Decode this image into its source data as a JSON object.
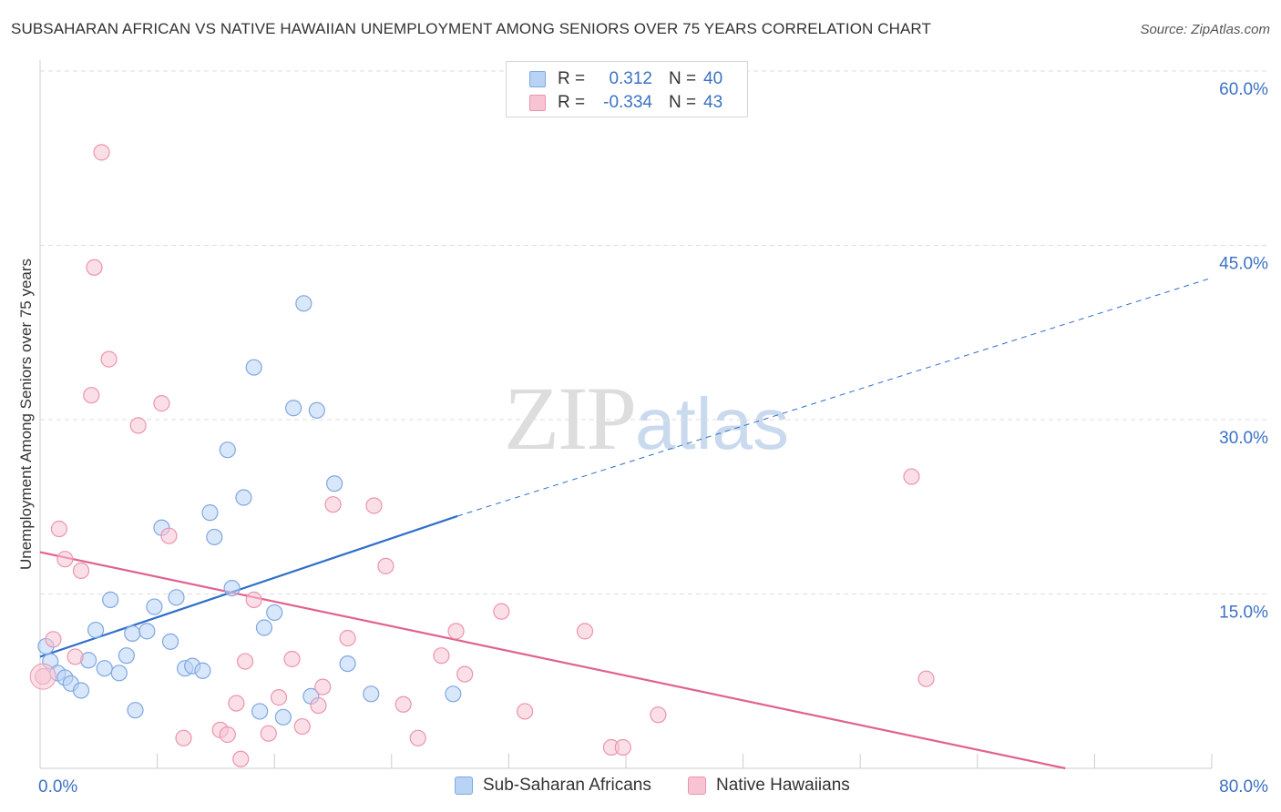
{
  "header": {
    "title": "SUBSAHARAN AFRICAN VS NATIVE HAWAIIAN UNEMPLOYMENT AMONG SENIORS OVER 75 YEARS CORRELATION CHART",
    "source": "Source: ZipAtlas.com"
  },
  "watermark": {
    "zip": "ZIP",
    "atlas": "atlas"
  },
  "legend_top": {
    "rows": [
      {
        "r_label": "R =",
        "r_value": "0.312",
        "n_label": "N =",
        "n_value": "40"
      },
      {
        "r_label": "R =",
        "r_value": "-0.334",
        "n_label": "N =",
        "n_value": "43"
      }
    ]
  },
  "legend_bottom": {
    "items": [
      {
        "label": "Sub-Saharan Africans"
      },
      {
        "label": "Native Hawaiians"
      }
    ]
  },
  "colors": {
    "blue_fill": "#b9d3f5",
    "blue_stroke": "#7fa7e0",
    "blue_line": "#2f6fcb",
    "pink_fill": "#f8c4d3",
    "pink_stroke": "#eb94ae",
    "pink_line": "#e0628f",
    "axis_text": "#3b72c4",
    "grid": "#dedede"
  },
  "chart_data": {
    "type": "scatter",
    "title": "SUBSAHARAN AFRICAN VS NATIVE HAWAIIAN UNEMPLOYMENT AMONG SENIORS OVER 75 YEARS CORRELATION CHART",
    "xlabel": "",
    "ylabel": "Unemployment Among Seniors over 75 years",
    "xlim": [
      0,
      80
    ],
    "ylim": [
      0,
      60
    ],
    "x_tick_labels": [
      "0.0%",
      "80.0%"
    ],
    "y_ticks": [
      15,
      30,
      45,
      60
    ],
    "y_tick_labels": [
      "15.0%",
      "30.0%",
      "45.0%",
      "60.0%"
    ],
    "legend_position": "top-center",
    "series": [
      {
        "name": "Sub-Saharan Africans",
        "color": "blue",
        "points": [
          [
            0.4,
            10.5
          ],
          [
            0.7,
            9.2
          ],
          [
            1.2,
            8.2
          ],
          [
            1.7,
            7.8
          ],
          [
            2.1,
            7.3
          ],
          [
            2.8,
            6.7
          ],
          [
            3.3,
            9.3
          ],
          [
            3.8,
            11.9
          ],
          [
            4.4,
            8.6
          ],
          [
            4.8,
            14.5
          ],
          [
            5.4,
            8.2
          ],
          [
            5.9,
            9.7
          ],
          [
            6.3,
            11.6
          ],
          [
            6.5,
            5.0
          ],
          [
            7.3,
            11.8
          ],
          [
            7.8,
            13.9
          ],
          [
            8.3,
            20.7
          ],
          [
            8.9,
            10.9
          ],
          [
            9.3,
            14.7
          ],
          [
            9.9,
            8.6
          ],
          [
            10.4,
            8.8
          ],
          [
            11.1,
            8.4
          ],
          [
            11.6,
            22.0
          ],
          [
            11.9,
            19.9
          ],
          [
            12.8,
            27.4
          ],
          [
            13.9,
            23.3
          ],
          [
            13.1,
            15.5
          ],
          [
            14.6,
            34.5
          ],
          [
            15.0,
            4.9
          ],
          [
            15.3,
            12.1
          ],
          [
            16.0,
            13.4
          ],
          [
            16.6,
            4.4
          ],
          [
            17.3,
            31.0
          ],
          [
            18.0,
            40.0
          ],
          [
            18.5,
            6.2
          ],
          [
            18.9,
            30.8
          ],
          [
            20.1,
            24.5
          ],
          [
            21.0,
            9.0
          ],
          [
            22.6,
            6.4
          ],
          [
            28.2,
            6.4
          ]
        ]
      },
      {
        "name": "Native Hawaiians",
        "color": "pink",
        "points": [
          [
            0.2,
            7.9
          ],
          [
            0.9,
            11.1
          ],
          [
            1.3,
            20.6
          ],
          [
            1.7,
            18.0
          ],
          [
            2.4,
            9.6
          ],
          [
            2.8,
            17.0
          ],
          [
            3.5,
            32.1
          ],
          [
            3.7,
            43.1
          ],
          [
            4.2,
            53.0
          ],
          [
            4.7,
            35.2
          ],
          [
            6.7,
            29.5
          ],
          [
            8.3,
            31.4
          ],
          [
            8.8,
            20.0
          ],
          [
            9.8,
            2.6
          ],
          [
            12.3,
            3.3
          ],
          [
            12.8,
            2.9
          ],
          [
            13.4,
            5.6
          ],
          [
            13.7,
            0.8
          ],
          [
            14.0,
            9.2
          ],
          [
            14.6,
            14.5
          ],
          [
            15.6,
            3.0
          ],
          [
            16.3,
            6.1
          ],
          [
            17.2,
            9.4
          ],
          [
            17.9,
            3.6
          ],
          [
            19.0,
            5.4
          ],
          [
            19.3,
            7.0
          ],
          [
            20.0,
            22.7
          ],
          [
            21.0,
            11.2
          ],
          [
            22.8,
            22.6
          ],
          [
            23.6,
            17.4
          ],
          [
            24.8,
            5.5
          ],
          [
            25.8,
            2.6
          ],
          [
            27.4,
            9.7
          ],
          [
            28.4,
            11.8
          ],
          [
            29.0,
            8.1
          ],
          [
            31.5,
            13.5
          ],
          [
            33.1,
            4.9
          ],
          [
            37.2,
            11.8
          ],
          [
            39.0,
            1.8
          ],
          [
            39.8,
            1.8
          ],
          [
            42.2,
            4.6
          ],
          [
            59.5,
            25.1
          ],
          [
            60.5,
            7.7
          ]
        ]
      }
    ],
    "trend_lines": [
      {
        "series": "Sub-Saharan Africans",
        "x0": 0,
        "y0": 9.6,
        "x1": 28.5,
        "y1": 21.7,
        "dashed_to_x": 80,
        "dashed_to_y": 42.2
      },
      {
        "series": "Native Hawaiians",
        "x0": 0,
        "y0": 18.6,
        "x1": 70,
        "y1": 0
      }
    ]
  }
}
